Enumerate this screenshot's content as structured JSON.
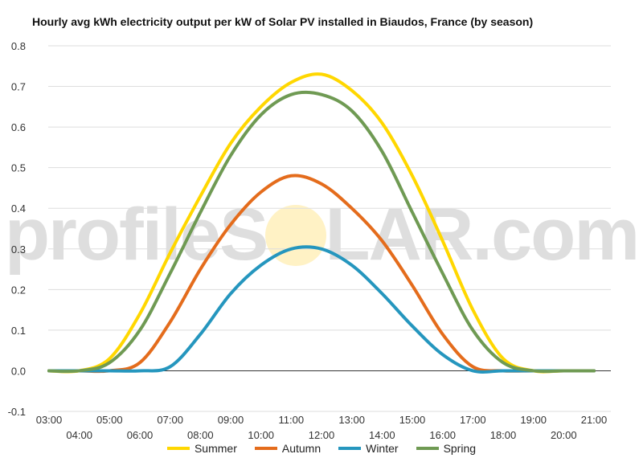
{
  "chart_data": {
    "type": "line",
    "title": "Hourly avg kWh electricity output per kW of Solar PV installed in Biaudos, France (by season)",
    "watermark": "profileSOLAR.com",
    "xlabel": "",
    "ylabel": "",
    "x_tick_labels": [
      "03:00",
      "04:00",
      "05:00",
      "06:00",
      "07:00",
      "08:00",
      "09:00",
      "10:00",
      "11:00",
      "12:00",
      "13:00",
      "14:00",
      "15:00",
      "16:00",
      "17:00",
      "18:00",
      "19:00",
      "20:00",
      "21:00"
    ],
    "x": [
      3,
      4,
      5,
      6,
      7,
      8,
      9,
      10,
      11,
      12,
      13,
      14,
      15,
      16,
      17,
      18,
      19,
      20,
      21
    ],
    "y_ticks": [
      -0.1,
      0.0,
      0.1,
      0.2,
      0.3,
      0.4,
      0.5,
      0.6,
      0.7,
      0.8
    ],
    "ylim": [
      -0.1,
      0.8
    ],
    "grid": true,
    "legend_position": "bottom",
    "series": [
      {
        "name": "Summer",
        "color": "#ffd700",
        "values": [
          0,
          0,
          0.03,
          0.14,
          0.29,
          0.43,
          0.56,
          0.65,
          0.71,
          0.73,
          0.69,
          0.61,
          0.48,
          0.32,
          0.15,
          0.03,
          0,
          0,
          0
        ]
      },
      {
        "name": "Autumn",
        "color": "#e46c1c",
        "values": [
          0,
          0,
          0,
          0.02,
          0.12,
          0.25,
          0.36,
          0.44,
          0.48,
          0.46,
          0.4,
          0.32,
          0.21,
          0.09,
          0.01,
          0,
          0,
          0,
          0
        ]
      },
      {
        "name": "Winter",
        "color": "#2596be",
        "values": [
          0,
          0,
          0,
          0,
          0.01,
          0.09,
          0.19,
          0.26,
          0.3,
          0.3,
          0.26,
          0.19,
          0.11,
          0.04,
          0,
          0,
          0,
          0,
          0
        ]
      },
      {
        "name": "Spring",
        "color": "#6f9a53",
        "values": [
          0,
          0,
          0.02,
          0.1,
          0.24,
          0.39,
          0.53,
          0.63,
          0.68,
          0.68,
          0.64,
          0.54,
          0.39,
          0.24,
          0.1,
          0.02,
          0,
          0,
          0
        ]
      }
    ]
  }
}
